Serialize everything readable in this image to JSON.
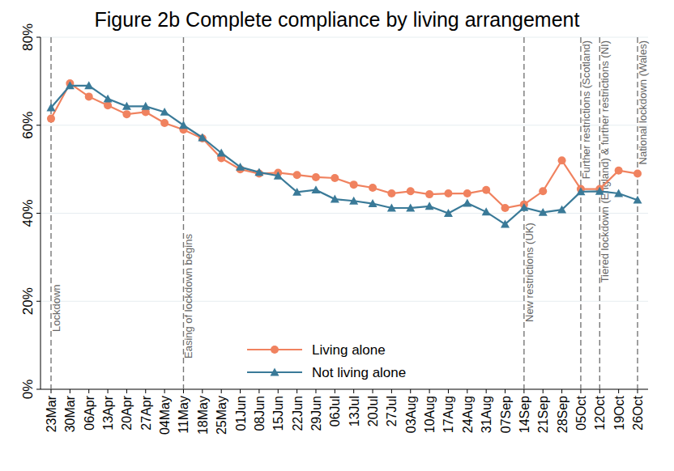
{
  "chart_data": {
    "type": "line",
    "title": "Figure 2b Complete compliance by living arrangement",
    "categories": [
      "23Mar",
      "30Mar",
      "06Apr",
      "13Apr",
      "20Apr",
      "27Apr",
      "04May",
      "11May",
      "18May",
      "25May",
      "01Jun",
      "08Jun",
      "15Jun",
      "22Jun",
      "29Jun",
      "06Jul",
      "13Jul",
      "20Jul",
      "27Jul",
      "03Aug",
      "10Aug",
      "17Aug",
      "24Aug",
      "31Aug",
      "07Sep",
      "14Sep",
      "21Sep",
      "28Sep",
      "05Oct",
      "12Oct",
      "19Oct",
      "26Oct"
    ],
    "series": [
      {
        "name": "Living alone",
        "color": "#f0825f",
        "marker": "circle",
        "values": [
          61.5,
          69.5,
          66.5,
          64.5,
          62.5,
          63,
          60.5,
          59,
          57,
          52.5,
          50,
          49,
          49.2,
          48.7,
          48.2,
          48,
          46.5,
          45.8,
          44.5,
          45,
          44.3,
          44.5,
          44.5,
          45.3,
          41.2,
          42,
          45,
          52,
          45.5,
          45.5,
          49.7,
          49
        ]
      },
      {
        "name": "Not living alone",
        "color": "#3a7a98",
        "marker": "triangle",
        "values": [
          64,
          69,
          69,
          66,
          64.3,
          64.3,
          63,
          60,
          57.2,
          53.7,
          50.5,
          49.3,
          48.5,
          44.8,
          45.3,
          43.2,
          42.8,
          42.2,
          41.2,
          41.2,
          41.6,
          40,
          42.3,
          40.3,
          37.5,
          41.3,
          40.2,
          40.8,
          44.9,
          45,
          44.5,
          43
        ]
      }
    ],
    "ylim": [
      0,
      80
    ],
    "yticks": [
      {
        "value": 0,
        "label": "0%"
      },
      {
        "value": 20,
        "label": "20%"
      },
      {
        "value": 40,
        "label": "40%"
      },
      {
        "value": 60,
        "label": "60%"
      },
      {
        "value": 80,
        "label": "80%"
      }
    ],
    "grid": true,
    "legend": "bottom",
    "annotations": [
      {
        "x": "23Mar",
        "text": "Lockdown"
      },
      {
        "x": "11May",
        "text": "Easing of lockdown begins"
      },
      {
        "x": "14Sep",
        "text": "New restrictions (UK)"
      },
      {
        "x": "05Oct",
        "text": "Further restrictions (Scotland)"
      },
      {
        "x": "12Oct",
        "text": "Tiered lockdown (England) & further restrictions (NI)"
      },
      {
        "x": "26Oct",
        "text": "National lockdown (Wales)"
      }
    ]
  }
}
